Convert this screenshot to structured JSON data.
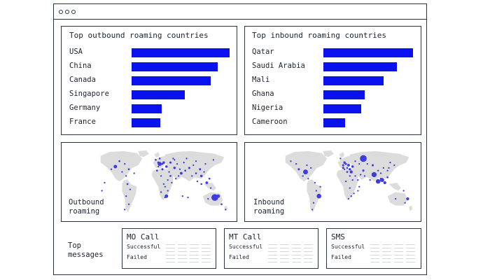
{
  "window": {
    "titlebar_dots": 3
  },
  "outbound_countries": {
    "title": "Top outbound roaming countries",
    "bar_color": "#0a10ee",
    "rows": [
      {
        "label": "USA",
        "value": 1.0
      },
      {
        "label": "China",
        "value": 0.88
      },
      {
        "label": "Canada",
        "value": 0.81
      },
      {
        "label": "Singapore",
        "value": 0.54
      },
      {
        "label": "Germany",
        "value": 0.31
      },
      {
        "label": "France",
        "value": 0.29
      }
    ]
  },
  "inbound_countries": {
    "title": "Top inbound roaming countries",
    "bar_color": "#0a10ee",
    "rows": [
      {
        "label": "Qatar",
        "value": 1.0
      },
      {
        "label": "Saudi Arabia",
        "value": 0.82
      },
      {
        "label": "Mali",
        "value": 0.67
      },
      {
        "label": "Ghana",
        "value": 0.46
      },
      {
        "label": "Nigeria",
        "value": 0.42
      },
      {
        "label": "Cameroon",
        "value": 0.24
      }
    ]
  },
  "maps": {
    "land_color": "#dcdcdc",
    "dot_color": "#3d3ce0",
    "outbound_label": "Outbound\nroaming",
    "inbound_label": "Inbound\nroaming"
  },
  "messages": {
    "label": "Top\nmessages",
    "cards": [
      {
        "title": "MO Call",
        "successful": "Successful",
        "failed": "Failed"
      },
      {
        "title": "MT Call",
        "successful": "Successful",
        "failed": "Failed"
      },
      {
        "title": "SMS",
        "successful": "Successful",
        "failed": "Failed"
      }
    ]
  }
}
